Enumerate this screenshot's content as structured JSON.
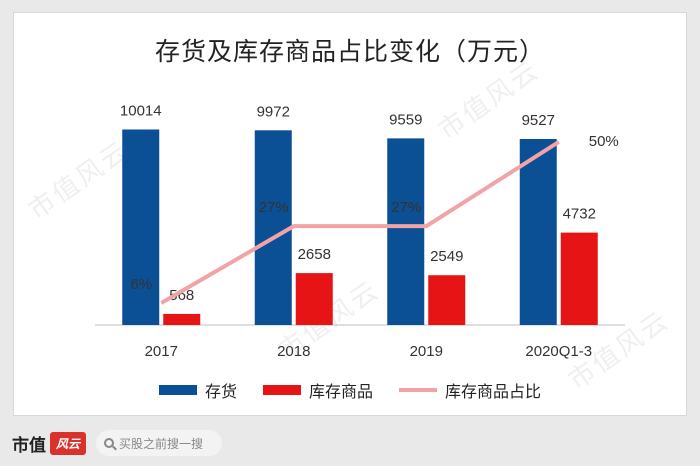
{
  "chart_data": {
    "type": "bar",
    "title": "存货及库存商品占比变化（万元）",
    "categories": [
      "2017",
      "2018",
      "2019",
      "2020Q1-3"
    ],
    "series": [
      {
        "name": "存货",
        "type": "bar",
        "color": "#0b4f95",
        "values": [
          10014,
          9972,
          9559,
          9527
        ]
      },
      {
        "name": "库存商品",
        "type": "bar",
        "color": "#e61414",
        "values": [
          568,
          2658,
          2549,
          4732
        ]
      },
      {
        "name": "库存商品占比",
        "type": "line",
        "color": "#f2a3a6",
        "values": [
          6,
          27,
          27,
          50
        ],
        "value_labels": [
          "6%",
          "27%",
          "27%",
          "50%"
        ]
      }
    ],
    "ylim": [
      0,
      10500
    ],
    "line_ylim": [
      0,
      56
    ],
    "grid": false,
    "legend_position": "bottom"
  },
  "watermark_text": "市值风云",
  "footer": {
    "brand": "市值",
    "brand_mark": "风云",
    "search_placeholder": "买股之前搜一搜"
  }
}
